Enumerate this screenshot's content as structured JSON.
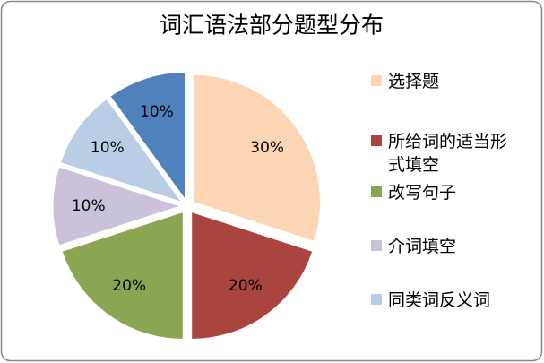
{
  "chart_data": {
    "type": "pie",
    "title": "词汇语法部分题型分布",
    "categories": [
      "选择题",
      "所给词的适当形式填空",
      "改写句子",
      "介词填空",
      "同类词反义词",
      null
    ],
    "values": [
      30,
      20,
      20,
      10,
      10,
      10
    ],
    "value_labels": [
      "30%",
      "20%",
      "20%",
      "10%",
      "10%",
      "10%"
    ],
    "colors": [
      "#fcd5b5",
      "#a9443f",
      "#8ba652",
      "#ccc1da",
      "#b9cde5",
      "#4f81bd"
    ],
    "legend": "right"
  }
}
